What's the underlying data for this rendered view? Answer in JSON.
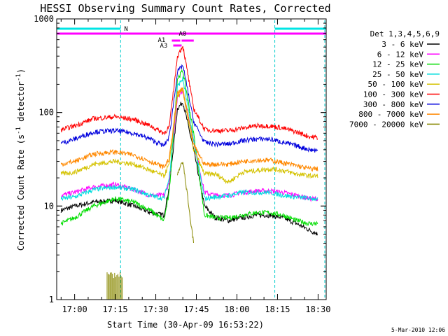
{
  "chart_data": {
    "type": "line",
    "title": "HESSI Observing Summary Count Rates, Corrected",
    "xlabel": "Start Time (30-Apr-09 16:53:22)",
    "ylabel_main": "Corrected Count Rate (s",
    "ylabel_sup1": "-1",
    "ylabel_mid": " detector",
    "ylabel_sup2": "-1",
    "ylabel_end": ")",
    "yscale": "log",
    "ylim": [
      1,
      1000
    ],
    "xlim": [
      "16:53:22",
      "18:33:00"
    ],
    "xticks": [
      "17:00",
      "17:15",
      "17:30",
      "17:45",
      "18:00",
      "18:15",
      "18:30"
    ],
    "yticks": [
      "1",
      "10",
      "100",
      "1000"
    ],
    "legend_title": "Det 1,3,4,5,6,9",
    "legend_position": "right",
    "series": [
      {
        "name": "3 - 6 keV",
        "color": "#000000",
        "values": [
          9,
          10,
          11,
          11.5,
          10,
          8.5,
          8,
          16,
          110,
          130,
          40,
          10,
          7.5,
          7,
          7.5,
          8,
          8,
          7.5,
          6.5,
          5.5,
          5
        ]
      },
      {
        "name": "6 - 12 keV",
        "color": "#ff00ff",
        "values": [
          13,
          14,
          16,
          17,
          15,
          13,
          13,
          18,
          150,
          170,
          50,
          14,
          13,
          13,
          14,
          14.5,
          14.5,
          14,
          13,
          12,
          12
        ]
      },
      {
        "name": "12 - 25 keV",
        "color": "#00dd00",
        "values": [
          6.5,
          7.5,
          10,
          12,
          11,
          9,
          7,
          14,
          230,
          280,
          60,
          8,
          7.5,
          7.5,
          8,
          8.5,
          8.5,
          8,
          7,
          6.5,
          6.5
        ]
      },
      {
        "name": "25 - 50 keV",
        "color": "#00dddd",
        "values": [
          12,
          12.5,
          15,
          16,
          15,
          13,
          12,
          20,
          190,
          230,
          50,
          12,
          12.5,
          13,
          14,
          14,
          14,
          13,
          12.5,
          12,
          12
        ]
      },
      {
        "name": "50 - 100 keV",
        "color": "#d4c200",
        "values": [
          22,
          23,
          28,
          30,
          28,
          24,
          21,
          28,
          150,
          170,
          40,
          22,
          22,
          18,
          23,
          24,
          25,
          24,
          22,
          21,
          21
        ]
      },
      {
        "name": "100 - 300 keV",
        "color": "#ff0000",
        "values": [
          65,
          72,
          86,
          90,
          84,
          72,
          60,
          70,
          400,
          520,
          110,
          66,
          64,
          64,
          68,
          72,
          72,
          68,
          62,
          55,
          54
        ]
      },
      {
        "name": "300 - 800 keV",
        "color": "#0000dd",
        "values": [
          47,
          52,
          62,
          64,
          60,
          52,
          44,
          55,
          270,
          320,
          80,
          48,
          46,
          46,
          50,
          52,
          52,
          48,
          44,
          40,
          39
        ]
      },
      {
        "name": "800 - 7000 keV",
        "color": "#ff8800",
        "values": [
          28,
          30,
          36,
          38,
          35,
          30,
          26,
          32,
          160,
          180,
          45,
          28,
          28,
          28,
          30,
          31,
          31,
          29,
          27,
          25,
          25
        ]
      },
      {
        "name": "7000 - 20000 keV",
        "color": "#888800",
        "values": [
          null,
          null,
          null,
          null,
          null,
          null,
          null,
          null,
          22,
          30,
          4,
          null,
          null,
          null,
          null,
          null,
          null,
          null,
          null,
          null,
          null
        ]
      }
    ],
    "time_points": [
      "16:55",
      "17:00",
      "17:07",
      "17:15",
      "17:22",
      "17:28",
      "17:33",
      "17:35",
      "17:38",
      "17:40",
      "17:44",
      "17:48",
      "17:52",
      "17:57",
      "18:02",
      "18:07",
      "18:12",
      "18:17",
      "18:22",
      "18:27",
      "18:30"
    ],
    "annotations": {
      "night_label": "N",
      "attenuator_labels": [
        "A0",
        "A1",
        "A3"
      ]
    },
    "footer_date": "5-Mar-2010 12:06"
  }
}
